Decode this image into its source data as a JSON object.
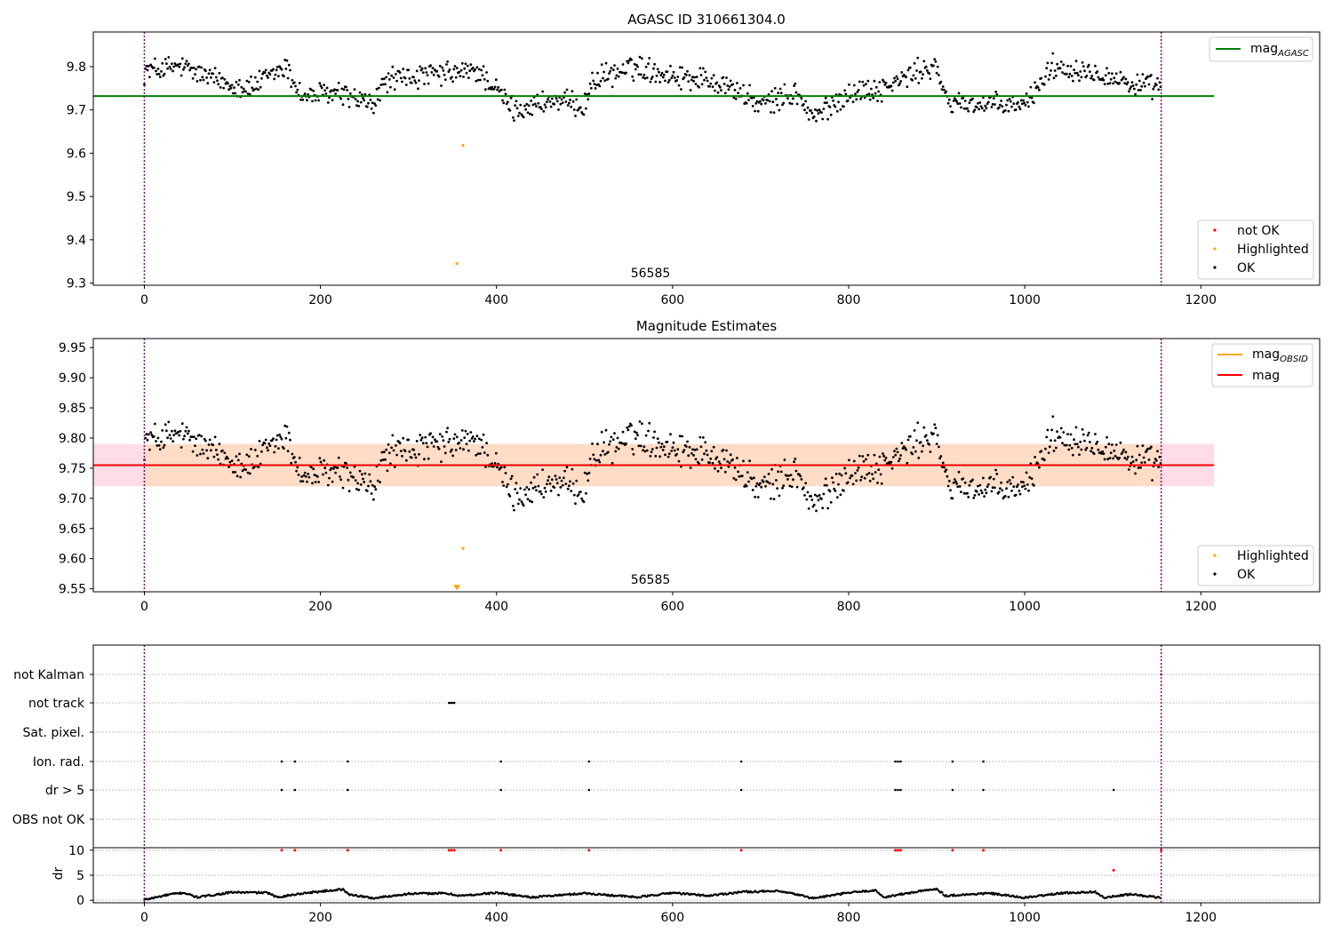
{
  "chart_data": [
    {
      "type": "scatter",
      "title": "AGASC ID 310661304.0",
      "annotation": "56585",
      "xlim": [
        -58,
        1335
      ],
      "ylim": [
        9.295,
        9.88
      ],
      "xticks": [
        0,
        200,
        400,
        600,
        800,
        1000,
        1200
      ],
      "yticks": [
        9.3,
        9.4,
        9.5,
        9.6,
        9.7,
        9.8
      ],
      "reference_lines": [
        {
          "name": "mag_AGASC",
          "y": 9.732,
          "x": [
            -58,
            1215
          ],
          "color": "#008000"
        }
      ],
      "vlines": [
        0,
        1155
      ],
      "highlighted_points": [
        {
          "x": 362,
          "y": 9.618
        },
        {
          "x": 355,
          "y": 9.345
        }
      ],
      "ok_points_trend": {
        "x": [
          0,
          40,
          80,
          120,
          160,
          180,
          220,
          260,
          275,
          330,
          380,
          420,
          460,
          500,
          510,
          560,
          600,
          640,
          660,
          700,
          740,
          760,
          800,
          840,
          880,
          900,
          910,
          960,
          1000,
          1030,
          1080,
          1120,
          1150
        ],
        "y": [
          9.79,
          9.8,
          9.77,
          9.75,
          9.8,
          9.73,
          9.74,
          9.71,
          9.77,
          9.78,
          9.79,
          9.7,
          9.72,
          9.71,
          9.77,
          9.8,
          9.78,
          9.77,
          9.76,
          9.71,
          9.74,
          9.68,
          9.74,
          9.75,
          9.79,
          9.8,
          9.72,
          9.71,
          9.71,
          9.8,
          9.79,
          9.76,
          9.75
        ]
      },
      "legend_top": {
        "position": "top-right",
        "entries": [
          {
            "label_main": "mag",
            "label_sub": "AGASC",
            "color": "#008000"
          }
        ]
      },
      "legend_bottom": {
        "position": "lower-right",
        "entries": [
          {
            "label": "not OK",
            "color": "#ff0000"
          },
          {
            "label": "Highlighted",
            "color": "#ffa500"
          },
          {
            "label": "OK",
            "color": "#000000"
          }
        ]
      }
    },
    {
      "type": "scatter",
      "title": "Magnitude Estimates",
      "annotation": "56585",
      "xlim": [
        -58,
        1335
      ],
      "ylim": [
        9.545,
        9.965
      ],
      "xticks": [
        0,
        200,
        400,
        600,
        800,
        1000,
        1200
      ],
      "yticks": [
        9.55,
        9.6,
        9.65,
        9.7,
        9.75,
        9.8,
        9.85,
        9.9,
        9.95
      ],
      "reference_lines": [
        {
          "name": "mag",
          "y": 9.755,
          "x": [
            -58,
            1215
          ],
          "color": "#ff0000"
        }
      ],
      "band_mag": {
        "y": [
          9.72,
          9.79
        ],
        "x": [
          -58,
          1215
        ],
        "color": "#ffdde6"
      },
      "band_mag_obsid": {
        "y": [
          9.72,
          9.79
        ],
        "x": [
          0,
          1155
        ],
        "color": "#ffdcc6"
      },
      "vlines": [
        0,
        1155
      ],
      "highlighted_points": [
        {
          "x": 362,
          "y": 9.617
        },
        {
          "x": 355,
          "y": 9.552
        }
      ],
      "legend_top": {
        "position": "top-right",
        "entries": [
          {
            "label_main": "mag",
            "label_sub": "OBSID",
            "color": "#ffa500"
          },
          {
            "label_main": "mag",
            "label_sub": "",
            "color": "#ff0000"
          }
        ]
      },
      "legend_bottom": {
        "position": "lower-right",
        "entries": [
          {
            "label": "Highlighted",
            "color": "#ffa500"
          },
          {
            "label": "OK",
            "color": "#000000"
          }
        ]
      }
    },
    {
      "type": "scatter",
      "title": "",
      "xlim": [
        -58,
        1335
      ],
      "xticks": [
        0,
        200,
        400,
        600,
        800,
        1000,
        1200
      ],
      "vlines": [
        0,
        1155
      ],
      "flag_rows": [
        "not Kalman",
        "not track",
        "Sat. pixel.",
        "Ion. rad.",
        "dr > 5",
        "OBS not OK"
      ],
      "flag_points": {
        "not Kalman": [
          1155
        ],
        "not track": [
          346,
          348,
          350,
          352
        ],
        "Sat. pixel.": [],
        "Ion. rad.": [
          156,
          171,
          231,
          405,
          505,
          678,
          853,
          856,
          859,
          918,
          953
        ],
        "dr > 5": [
          156,
          171,
          231,
          405,
          505,
          678,
          853,
          856,
          859,
          918,
          953,
          1101
        ],
        "OBS not OK": []
      },
      "dr_ylabel": "dr",
      "dr_yticks": [
        0,
        5,
        10
      ],
      "dr_ylim": [
        -0.5,
        10.5
      ],
      "dr_red_points": [
        {
          "x": 156,
          "y": 10
        },
        {
          "x": 171,
          "y": 10
        },
        {
          "x": 231,
          "y": 10
        },
        {
          "x": 346,
          "y": 10
        },
        {
          "x": 349,
          "y": 10
        },
        {
          "x": 352,
          "y": 10
        },
        {
          "x": 405,
          "y": 10
        },
        {
          "x": 505,
          "y": 10
        },
        {
          "x": 678,
          "y": 10
        },
        {
          "x": 853,
          "y": 10
        },
        {
          "x": 856,
          "y": 10
        },
        {
          "x": 859,
          "y": 10
        },
        {
          "x": 918,
          "y": 10
        },
        {
          "x": 953,
          "y": 10
        },
        {
          "x": 1101,
          "y": 6
        },
        {
          "x": 1155,
          "y": 10
        }
      ],
      "dr_trend": {
        "x": [
          0,
          30,
          45,
          60,
          100,
          140,
          150,
          180,
          225,
          232,
          260,
          300,
          340,
          360,
          400,
          440,
          500,
          560,
          600,
          640,
          680,
          720,
          740,
          760,
          800,
          830,
          840,
          870,
          900,
          910,
          960,
          1000,
          1040,
          1080,
          1090,
          1120,
          1155
        ],
        "y": [
          0.1,
          1.2,
          1.5,
          0.6,
          1.6,
          1.5,
          0.6,
          1.4,
          2.2,
          1.2,
          0.4,
          1.3,
          1.4,
          0.9,
          1.5,
          0.6,
          1.4,
          0.6,
          1.5,
          0.9,
          1.7,
          1.8,
          1.2,
          0.4,
          1.5,
          2.0,
          0.6,
          1.5,
          2.3,
          0.9,
          1.4,
          0.5,
          1.4,
          1.7,
          0.5,
          1.2,
          0.5
        ]
      }
    }
  ]
}
